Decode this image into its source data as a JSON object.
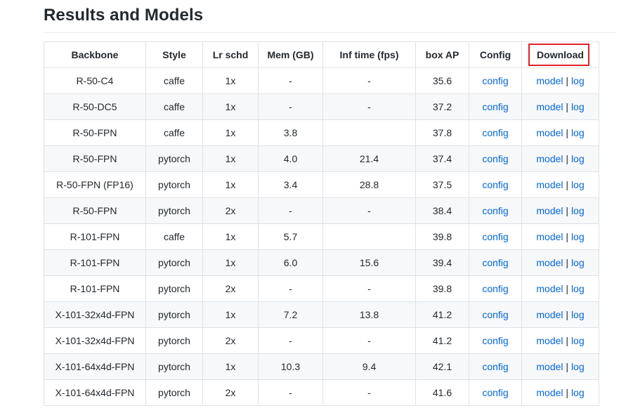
{
  "page": {
    "title": "Results and Models"
  },
  "table": {
    "headers": [
      "Backbone",
      "Style",
      "Lr schd",
      "Mem (GB)",
      "Inf time (fps)",
      "box AP",
      "Config",
      "Download"
    ],
    "annotation": {
      "highlighted_header": "Download",
      "box_color": "#e02026"
    },
    "link_labels": {
      "config": "config",
      "model": "model",
      "separator": " | ",
      "log": "log"
    },
    "rows": [
      {
        "backbone": "R-50-C4",
        "style": "caffe",
        "lr_schd": "1x",
        "mem_gb": "-",
        "inf_time_fps": "-",
        "box_ap": "35.6"
      },
      {
        "backbone": "R-50-DC5",
        "style": "caffe",
        "lr_schd": "1x",
        "mem_gb": "-",
        "inf_time_fps": "-",
        "box_ap": "37.2"
      },
      {
        "backbone": "R-50-FPN",
        "style": "caffe",
        "lr_schd": "1x",
        "mem_gb": "3.8",
        "inf_time_fps": "",
        "box_ap": "37.8"
      },
      {
        "backbone": "R-50-FPN",
        "style": "pytorch",
        "lr_schd": "1x",
        "mem_gb": "4.0",
        "inf_time_fps": "21.4",
        "box_ap": "37.4"
      },
      {
        "backbone": "R-50-FPN (FP16)",
        "style": "pytorch",
        "lr_schd": "1x",
        "mem_gb": "3.4",
        "inf_time_fps": "28.8",
        "box_ap": "37.5"
      },
      {
        "backbone": "R-50-FPN",
        "style": "pytorch",
        "lr_schd": "2x",
        "mem_gb": "-",
        "inf_time_fps": "-",
        "box_ap": "38.4"
      },
      {
        "backbone": "R-101-FPN",
        "style": "caffe",
        "lr_schd": "1x",
        "mem_gb": "5.7",
        "inf_time_fps": "",
        "box_ap": "39.8"
      },
      {
        "backbone": "R-101-FPN",
        "style": "pytorch",
        "lr_schd": "1x",
        "mem_gb": "6.0",
        "inf_time_fps": "15.6",
        "box_ap": "39.4"
      },
      {
        "backbone": "R-101-FPN",
        "style": "pytorch",
        "lr_schd": "2x",
        "mem_gb": "-",
        "inf_time_fps": "-",
        "box_ap": "39.8"
      },
      {
        "backbone": "X-101-32x4d-FPN",
        "style": "pytorch",
        "lr_schd": "1x",
        "mem_gb": "7.2",
        "inf_time_fps": "13.8",
        "box_ap": "41.2"
      },
      {
        "backbone": "X-101-32x4d-FPN",
        "style": "pytorch",
        "lr_schd": "2x",
        "mem_gb": "-",
        "inf_time_fps": "-",
        "box_ap": "41.2"
      },
      {
        "backbone": "X-101-64x4d-FPN",
        "style": "pytorch",
        "lr_schd": "1x",
        "mem_gb": "10.3",
        "inf_time_fps": "9.4",
        "box_ap": "42.1"
      },
      {
        "backbone": "X-101-64x4d-FPN",
        "style": "pytorch",
        "lr_schd": "2x",
        "mem_gb": "-",
        "inf_time_fps": "-",
        "box_ap": "41.6"
      }
    ]
  },
  "colors": {
    "text": "#24292e",
    "table_border": "#dfe2e5",
    "row_stripe": "#f6f8fa",
    "link": "#0366d6",
    "title_rule": "#eaecef",
    "annotation_red": "#e02026"
  }
}
